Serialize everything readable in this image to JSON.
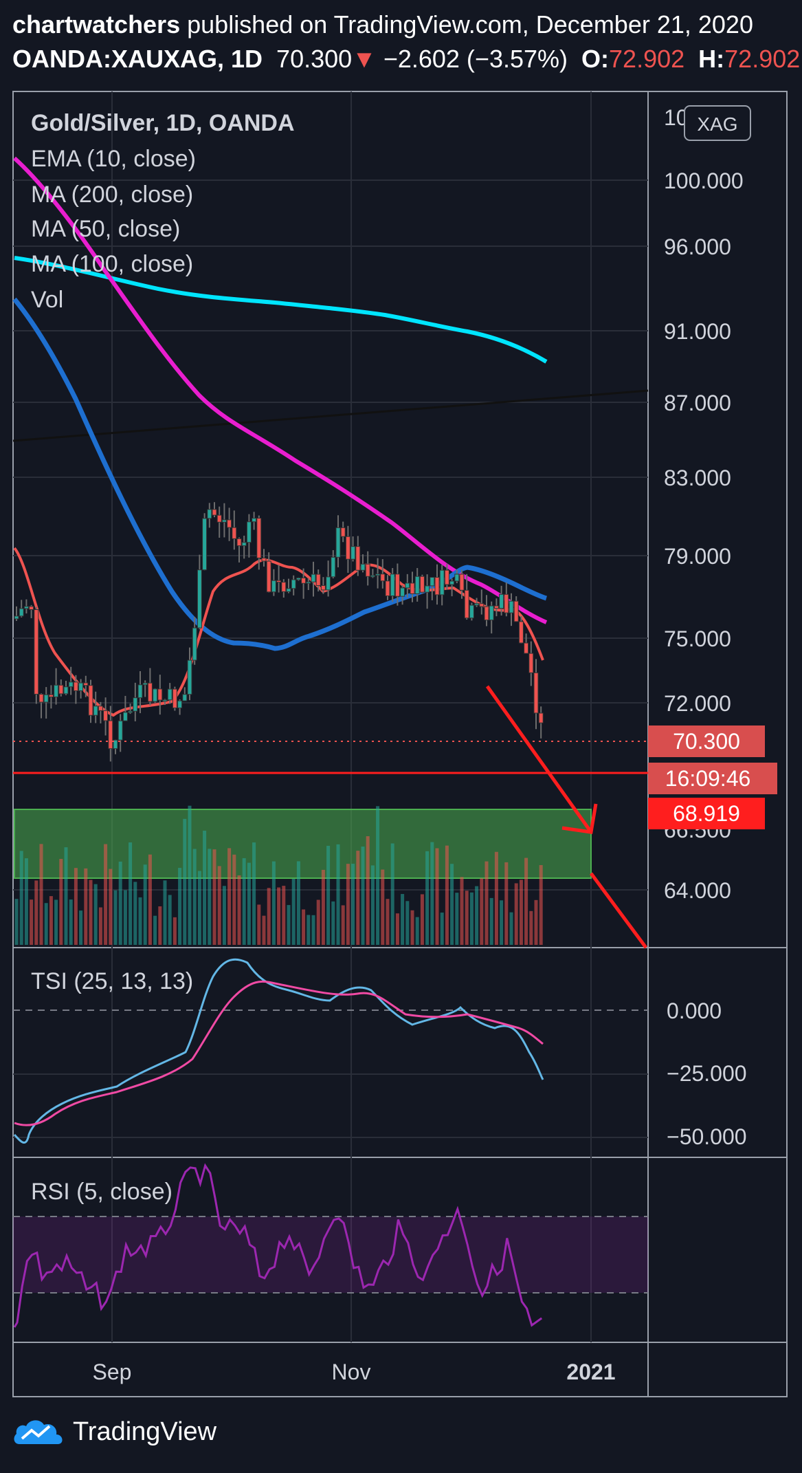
{
  "header": {
    "author": "chartwatchers",
    "published_text": "published on TradingView.com, December 21, 2020",
    "symbol": "OANDA:XAUXAG, 1D",
    "last": "70.300",
    "change": "−2.602 (−3.57%)",
    "o_label": "O:",
    "o_value": "72.902",
    "h_label": "H:",
    "h_value": "72.902"
  },
  "legend": {
    "title": "Gold/Silver, 1D, OANDA",
    "ema": "EMA (10, close)",
    "ma200": "MA (200, close)",
    "ma50": "MA (50, close)",
    "ma100": "MA (100, close)",
    "vol": "Vol",
    "tsi": "TSI (25, 13, 13)",
    "rsi": "RSI (5, close)"
  },
  "currency_badge": "XAG",
  "price_axis_labels": [
    "10",
    "100.000",
    "96.000",
    "91.000",
    "87.000",
    "83.000",
    "79.000",
    "75.000",
    "72.000",
    "66.500",
    "64.000"
  ],
  "tsi_axis_labels": [
    "0.000",
    "−25.000",
    "−50.000"
  ],
  "time_axis_labels": [
    "Sep",
    "Nov",
    "2021"
  ],
  "price_tags": {
    "last": "70.300",
    "countdown": "16:09:46",
    "level": "68.919"
  },
  "footer": {
    "brand": "TradingView"
  },
  "colors": {
    "background": "#131722",
    "grid": "#2a2e39",
    "up": "#26a69a",
    "down": "#ef5350",
    "ema10": "#ef5350",
    "ma200": "#00e5ff",
    "ma50": "#1e6fd0",
    "ma100": "#e91ecf",
    "tsi": "#63b7e6",
    "tsi_signal": "#f04aa4",
    "rsi": "#9c27b0",
    "zone": "#4caf50"
  },
  "chart_data": [
    {
      "type": "candlestick",
      "title": "Gold/Silver, 1D, OANDA",
      "x_range": [
        "2020-08-10",
        "2021-01-12"
      ],
      "x_ticks": [
        "Sep",
        "Nov",
        "2021"
      ],
      "y_ticks": [
        100,
        96,
        91,
        87,
        83,
        79,
        75,
        72,
        66.5,
        64
      ],
      "last": 70.3,
      "open": 72.902,
      "high": 72.902,
      "change": -2.602,
      "change_pct": -3.57,
      "support_level": 68.919,
      "demand_zone": [
        64.8,
        68.0
      ],
      "trendline": {
        "start": [
          "2020-08-10",
          85.6
        ],
        "end": [
          "2021-01-12",
          88.0
        ]
      },
      "arrow": {
        "start": [
          "2020-12-14",
          73.6
        ],
        "end": [
          "2020-12-31",
          66.9
        ]
      },
      "projection_line": {
        "start": [
          "2020-12-31",
          66.9
        ],
        "end": [
          "2021-01-12",
          62.4
        ]
      },
      "series": [
        {
          "name": "MA (200, close)",
          "y_approx": [
            95.2,
            93.3,
            92.6,
            91.3,
            89.7
          ]
        },
        {
          "name": "MA (100, close)",
          "y_approx": [
            102.5,
            93.0,
            86.5,
            80.6,
            76.2
          ]
        },
        {
          "name": "MA (50, close)",
          "y_approx": [
            93.0,
            84.0,
            75.0,
            76.5,
            77.8
          ]
        },
        {
          "name": "EMA (10, close)",
          "y_approx": [
            79.8,
            72.5,
            77.5,
            77.3,
            74.0
          ]
        }
      ]
    },
    {
      "type": "line",
      "title": "TSI (25, 13, 13)",
      "y_ticks": [
        0,
        -25,
        -50
      ],
      "series": [
        {
          "name": "TSI",
          "last_approx": -27
        },
        {
          "name": "signal",
          "last_approx": -12
        }
      ]
    },
    {
      "type": "line",
      "title": "RSI (5, close)",
      "band": [
        30,
        70
      ],
      "series": [
        {
          "name": "RSI",
          "last_approx": 22
        }
      ]
    }
  ]
}
